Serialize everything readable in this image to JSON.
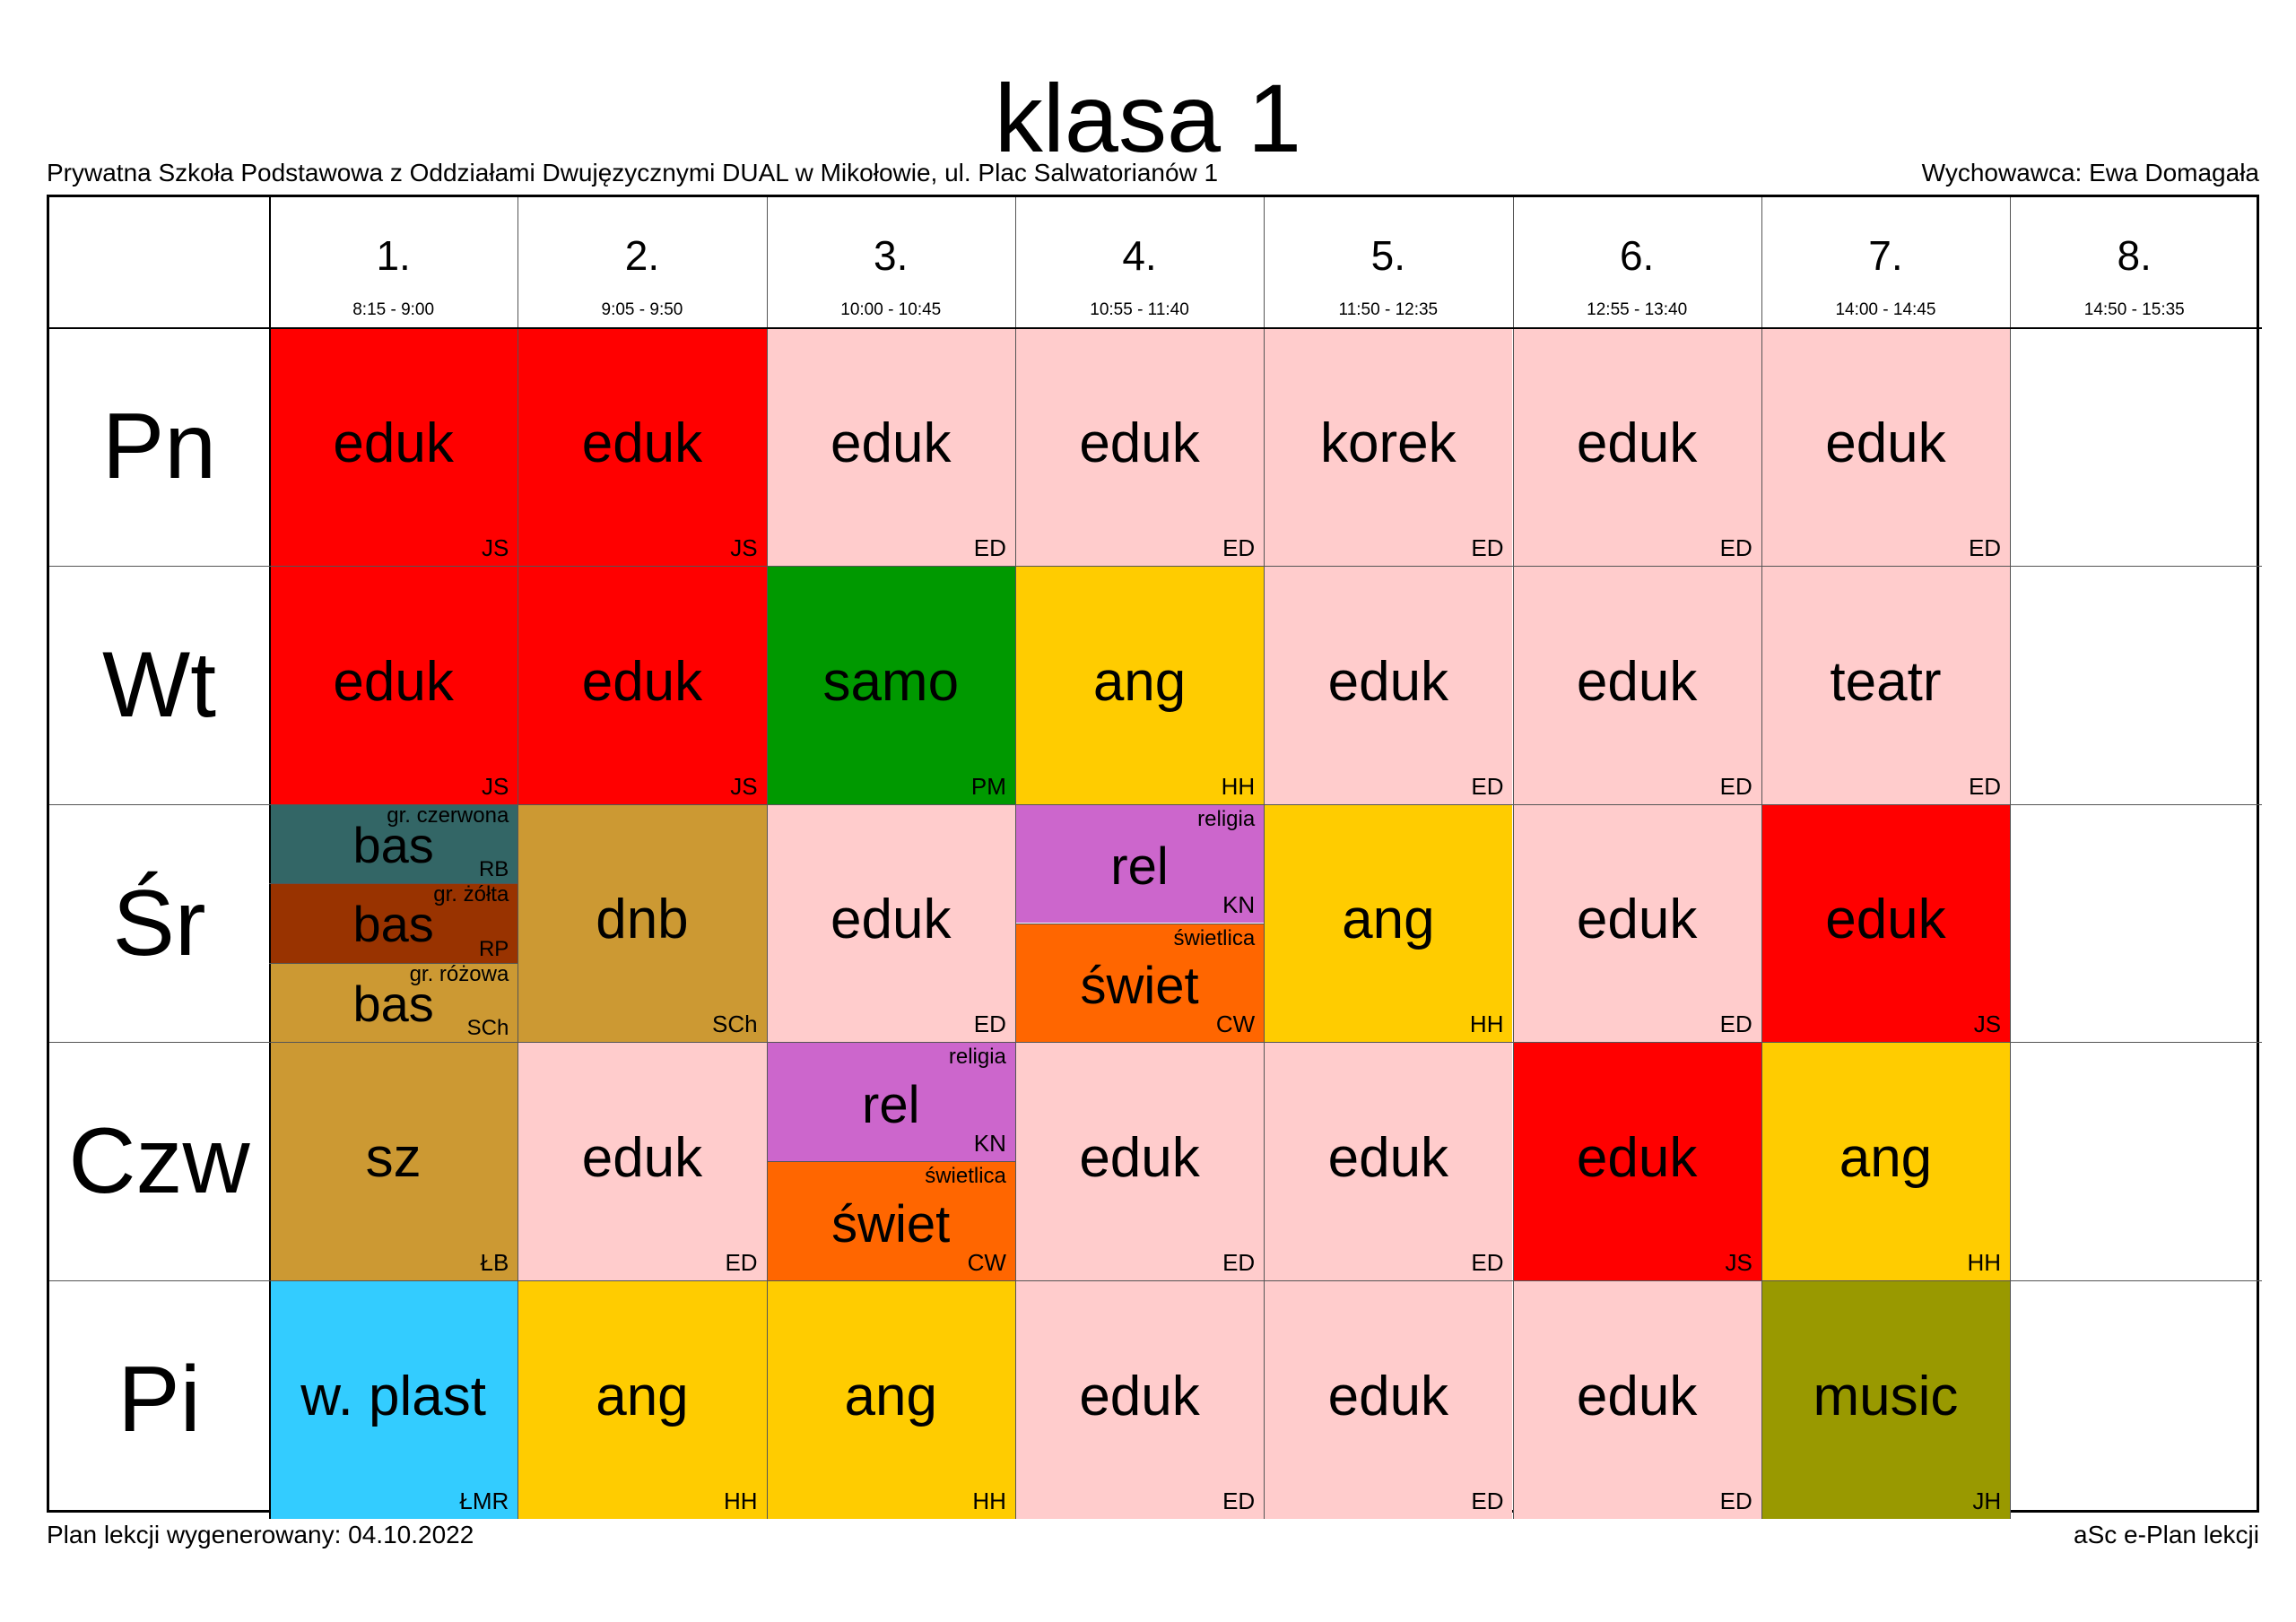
{
  "header": {
    "title": "klasa 1",
    "school": "Prywatna Szkoła Podstawowa z Oddziałami Dwujęzycznymi DUAL w Mikołowie, ul. Plac Salwatorianów 1",
    "homeroom": "Wychowawca: Ewa Domagała"
  },
  "footer": {
    "generated": "Plan lekcji wygenerowany: 04.10.2022",
    "app": "aSc e-Plan lekcji"
  },
  "periods": [
    {
      "num": "1.",
      "time": "8:15 - 9:00"
    },
    {
      "num": "2.",
      "time": "9:05 - 9:50"
    },
    {
      "num": "3.",
      "time": "10:00 - 10:45"
    },
    {
      "num": "4.",
      "time": "10:55 - 11:40"
    },
    {
      "num": "5.",
      "time": "11:50 - 12:35"
    },
    {
      "num": "6.",
      "time": "12:55 - 13:40"
    },
    {
      "num": "7.",
      "time": "14:00 - 14:45"
    },
    {
      "num": "8.",
      "time": "14:50 - 15:35"
    }
  ],
  "days": [
    "Pn",
    "Wt",
    "Śr",
    "Czw",
    "Pi"
  ],
  "colors": {
    "red": "#ff0000",
    "pink": "#ffcccc",
    "green": "#009900",
    "yellow": "#ffcc00",
    "teal": "#336666",
    "brown": "#993300",
    "ochre": "#cc9933",
    "violet": "#cc66cc",
    "orange": "#ff6600",
    "cyan": "#33ccff",
    "olive": "#999900"
  },
  "lessons": [
    {
      "day": 0,
      "period": 0,
      "subject": "eduk",
      "teacher": "JS",
      "color": "#ff0000"
    },
    {
      "day": 0,
      "period": 1,
      "subject": "eduk",
      "teacher": "JS",
      "color": "#ff0000"
    },
    {
      "day": 0,
      "period": 2,
      "subject": "eduk",
      "teacher": "ED",
      "color": "#ffcccc"
    },
    {
      "day": 0,
      "period": 3,
      "subject": "eduk",
      "teacher": "ED",
      "color": "#ffcccc"
    },
    {
      "day": 0,
      "period": 4,
      "subject": "korek",
      "teacher": "ED",
      "color": "#ffcccc"
    },
    {
      "day": 0,
      "period": 5,
      "subject": "eduk",
      "teacher": "ED",
      "color": "#ffcccc"
    },
    {
      "day": 0,
      "period": 6,
      "subject": "eduk",
      "teacher": "ED",
      "color": "#ffcccc"
    },
    {
      "day": 1,
      "period": 0,
      "subject": "eduk",
      "teacher": "JS",
      "color": "#ff0000"
    },
    {
      "day": 1,
      "period": 1,
      "subject": "eduk",
      "teacher": "JS",
      "color": "#ff0000"
    },
    {
      "day": 1,
      "period": 2,
      "subject": "samo",
      "teacher": "PM",
      "color": "#009900"
    },
    {
      "day": 1,
      "period": 3,
      "subject": "ang",
      "teacher": "HH",
      "color": "#ffcc00"
    },
    {
      "day": 1,
      "period": 4,
      "subject": "eduk",
      "teacher": "ED",
      "color": "#ffcccc"
    },
    {
      "day": 1,
      "period": 5,
      "subject": "eduk",
      "teacher": "ED",
      "color": "#ffcccc"
    },
    {
      "day": 1,
      "period": 6,
      "subject": "teatr",
      "teacher": "ED",
      "color": "#ffcccc"
    },
    {
      "day": 2,
      "period": 0,
      "part": 0,
      "parts": 3,
      "subject": "bas",
      "teacher": "RB",
      "group": "gr. czerwona",
      "color": "#336666"
    },
    {
      "day": 2,
      "period": 0,
      "part": 1,
      "parts": 3,
      "subject": "bas",
      "teacher": "RP",
      "group": "gr. żółta",
      "color": "#993300"
    },
    {
      "day": 2,
      "period": 0,
      "part": 2,
      "parts": 3,
      "subject": "bas",
      "teacher": "SCh",
      "group": "gr. różowa",
      "color": "#cc9933"
    },
    {
      "day": 2,
      "period": 1,
      "subject": "dnb",
      "teacher": "SCh",
      "color": "#cc9933"
    },
    {
      "day": 2,
      "period": 2,
      "subject": "eduk",
      "teacher": "ED",
      "color": "#ffcccc"
    },
    {
      "day": 2,
      "period": 3,
      "part": 0,
      "parts": 2,
      "subject": "rel",
      "teacher": "KN",
      "group": "religia",
      "color": "#cc66cc"
    },
    {
      "day": 2,
      "period": 3,
      "part": 1,
      "parts": 2,
      "subject": "świet",
      "teacher": "CW",
      "group": "świetlica",
      "color": "#ff6600"
    },
    {
      "day": 2,
      "period": 4,
      "subject": "ang",
      "teacher": "HH",
      "color": "#ffcc00"
    },
    {
      "day": 2,
      "period": 5,
      "subject": "eduk",
      "teacher": "ED",
      "color": "#ffcccc"
    },
    {
      "day": 2,
      "period": 6,
      "subject": "eduk",
      "teacher": "JS",
      "color": "#ff0000"
    },
    {
      "day": 3,
      "period": 0,
      "subject": "sz",
      "teacher": "ŁB",
      "color": "#cc9933"
    },
    {
      "day": 3,
      "period": 1,
      "subject": "eduk",
      "teacher": "ED",
      "color": "#ffcccc"
    },
    {
      "day": 3,
      "period": 2,
      "part": 0,
      "parts": 2,
      "subject": "rel",
      "teacher": "KN",
      "group": "religia",
      "color": "#cc66cc"
    },
    {
      "day": 3,
      "period": 2,
      "part": 1,
      "parts": 2,
      "subject": "świet",
      "teacher": "CW",
      "group": "świetlica",
      "color": "#ff6600"
    },
    {
      "day": 3,
      "period": 3,
      "subject": "eduk",
      "teacher": "ED",
      "color": "#ffcccc"
    },
    {
      "day": 3,
      "period": 4,
      "subject": "eduk",
      "teacher": "ED",
      "color": "#ffcccc"
    },
    {
      "day": 3,
      "period": 5,
      "subject": "eduk",
      "teacher": "JS",
      "color": "#ff0000"
    },
    {
      "day": 3,
      "period": 6,
      "subject": "ang",
      "teacher": "HH",
      "color": "#ffcc00"
    },
    {
      "day": 4,
      "period": 0,
      "subject": "w. plast",
      "teacher": "ŁMR",
      "color": "#33ccff"
    },
    {
      "day": 4,
      "period": 1,
      "subject": "ang",
      "teacher": "HH",
      "color": "#ffcc00"
    },
    {
      "day": 4,
      "period": 2,
      "subject": "ang",
      "teacher": "HH",
      "color": "#ffcc00"
    },
    {
      "day": 4,
      "period": 3,
      "subject": "eduk",
      "teacher": "ED",
      "color": "#ffcccc"
    },
    {
      "day": 4,
      "period": 4,
      "subject": "eduk",
      "teacher": "ED",
      "color": "#ffcccc"
    },
    {
      "day": 4,
      "period": 5,
      "subject": "eduk",
      "teacher": "ED",
      "color": "#ffcccc"
    },
    {
      "day": 4,
      "period": 6,
      "subject": "music",
      "teacher": "JH",
      "color": "#999900"
    }
  ]
}
